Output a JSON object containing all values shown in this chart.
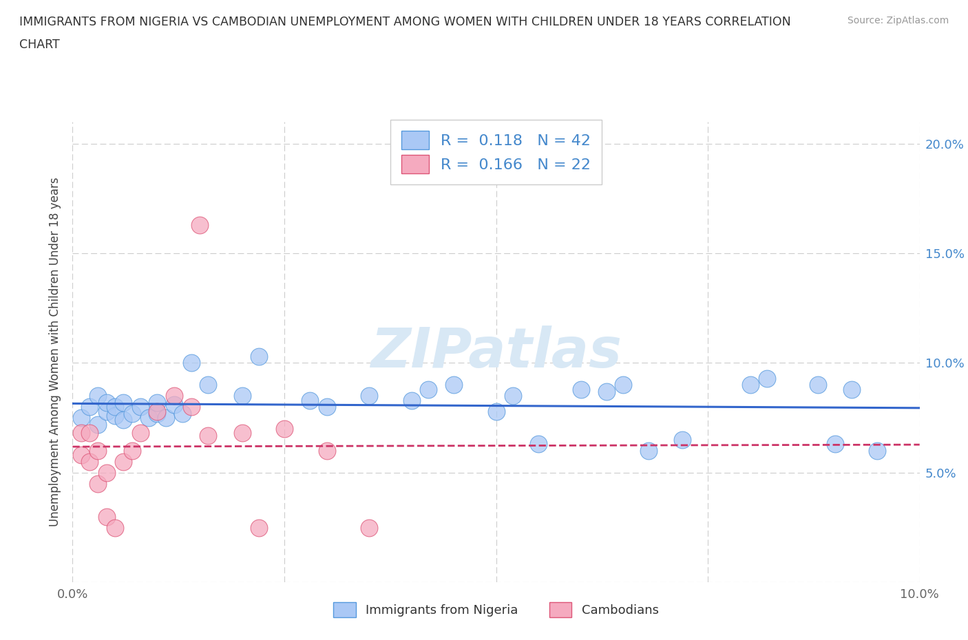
{
  "title_line1": "IMMIGRANTS FROM NIGERIA VS CAMBODIAN UNEMPLOYMENT AMONG WOMEN WITH CHILDREN UNDER 18 YEARS CORRELATION",
  "title_line2": "CHART",
  "source": "Source: ZipAtlas.com",
  "ylabel": "Unemployment Among Women with Children Under 18 years",
  "xlim": [
    0.0,
    0.1
  ],
  "ylim": [
    0.0,
    0.21
  ],
  "yticks": [
    0.0,
    0.05,
    0.1,
    0.15,
    0.2
  ],
  "ytick_labels_right": [
    "",
    "5.0%",
    "10.0%",
    "15.0%",
    "20.0%"
  ],
  "color_nigeria": "#aac8f5",
  "color_cambodian": "#f5aabf",
  "edge_color_nigeria": "#5599dd",
  "edge_color_cambodian": "#dd5577",
  "line_color_nigeria": "#3366cc",
  "line_color_cambodian": "#cc3366",
  "R_nigeria": 0.118,
  "N_nigeria": 42,
  "R_cambodian": 0.166,
  "N_cambodian": 22,
  "watermark": "ZIPatlas",
  "nigeria_x": [
    0.001,
    0.002,
    0.003,
    0.003,
    0.004,
    0.004,
    0.005,
    0.005,
    0.006,
    0.006,
    0.007,
    0.008,
    0.009,
    0.01,
    0.01,
    0.011,
    0.012,
    0.013,
    0.014,
    0.016,
    0.02,
    0.022,
    0.028,
    0.03,
    0.035,
    0.04,
    0.042,
    0.045,
    0.05,
    0.052,
    0.055,
    0.06,
    0.063,
    0.065,
    0.068,
    0.072,
    0.08,
    0.082,
    0.088,
    0.09,
    0.092,
    0.095
  ],
  "nigeria_y": [
    0.075,
    0.08,
    0.072,
    0.085,
    0.078,
    0.082,
    0.076,
    0.08,
    0.074,
    0.082,
    0.077,
    0.08,
    0.075,
    0.077,
    0.082,
    0.075,
    0.081,
    0.077,
    0.1,
    0.09,
    0.085,
    0.103,
    0.083,
    0.08,
    0.085,
    0.083,
    0.088,
    0.09,
    0.078,
    0.085,
    0.063,
    0.088,
    0.087,
    0.09,
    0.06,
    0.065,
    0.09,
    0.093,
    0.09,
    0.063,
    0.088,
    0.06
  ],
  "cambodian_x": [
    0.001,
    0.001,
    0.002,
    0.002,
    0.003,
    0.003,
    0.004,
    0.004,
    0.005,
    0.006,
    0.007,
    0.008,
    0.01,
    0.012,
    0.014,
    0.015,
    0.016,
    0.02,
    0.022,
    0.025,
    0.03,
    0.035
  ],
  "cambodian_y": [
    0.068,
    0.058,
    0.068,
    0.055,
    0.06,
    0.045,
    0.05,
    0.03,
    0.025,
    0.055,
    0.06,
    0.068,
    0.078,
    0.085,
    0.08,
    0.163,
    0.067,
    0.068,
    0.025,
    0.07,
    0.06,
    0.025
  ]
}
